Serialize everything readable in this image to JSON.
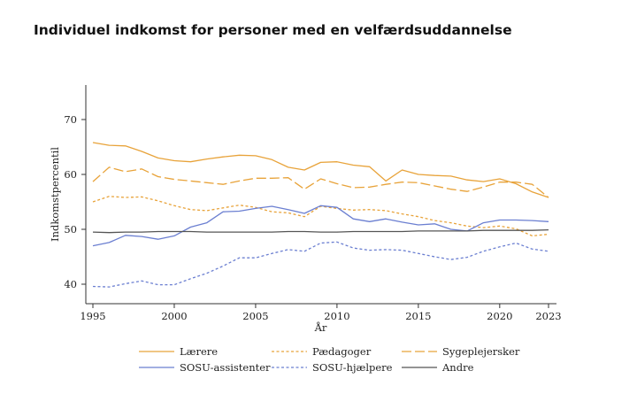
{
  "title": "Individuel indkomst for personer med en velfærdsuddannelse",
  "chart_data": {
    "type": "line",
    "xlabel": "År",
    "ylabel": "Indkomstpercentil",
    "xlim": [
      1995,
      2023
    ],
    "ylim": [
      38,
      74
    ],
    "x_ticks": [
      1995,
      2000,
      2005,
      2010,
      2015,
      2020,
      2023
    ],
    "y_ticks": [
      40,
      50,
      60,
      70
    ],
    "grid": false,
    "legend_position": "bottom",
    "x": [
      1995,
      1996,
      1997,
      1998,
      1999,
      2000,
      2001,
      2002,
      2003,
      2004,
      2005,
      2006,
      2007,
      2008,
      2009,
      2010,
      2011,
      2012,
      2013,
      2014,
      2015,
      2016,
      2017,
      2018,
      2019,
      2020,
      2021,
      2022,
      2023
    ],
    "series": [
      {
        "name": "Lærere",
        "color": "#e8a33a",
        "dash": "solid",
        "values": [
          65.8,
          65.3,
          65.2,
          64.2,
          63.0,
          62.5,
          62.3,
          62.8,
          63.2,
          63.5,
          63.4,
          62.7,
          61.3,
          60.8,
          62.2,
          62.3,
          61.7,
          61.4,
          58.8,
          60.8,
          60.0,
          59.8,
          59.7,
          59.0,
          58.7,
          59.2,
          58.3,
          56.8,
          55.8
        ]
      },
      {
        "name": "Pædagoger",
        "color": "#e8a33a",
        "dash": "dotted",
        "values": [
          55.0,
          56.0,
          55.8,
          55.9,
          55.2,
          54.3,
          53.6,
          53.4,
          53.9,
          54.4,
          54.0,
          53.2,
          53.0,
          52.3,
          54.2,
          53.8,
          53.5,
          53.6,
          53.4,
          52.8,
          52.3,
          51.6,
          51.2,
          50.6,
          50.3,
          50.6,
          50.1,
          48.8,
          49.1
        ]
      },
      {
        "name": "Sygeplejersker",
        "color": "#e8a33a",
        "dash": "dashed",
        "values": [
          58.7,
          61.3,
          60.5,
          61.0,
          59.6,
          59.1,
          58.8,
          58.5,
          58.2,
          58.8,
          59.3,
          59.3,
          59.4,
          57.3,
          59.2,
          58.3,
          57.6,
          57.7,
          58.2,
          58.6,
          58.5,
          57.9,
          57.3,
          56.9,
          57.7,
          58.6,
          58.6,
          58.2,
          55.8
        ]
      },
      {
        "name": "SOSU-assistenter",
        "color": "#6b7fd1",
        "dash": "solid",
        "values": [
          47.0,
          47.6,
          48.9,
          48.7,
          48.2,
          48.8,
          50.4,
          51.2,
          53.2,
          53.3,
          53.8,
          54.2,
          53.6,
          52.9,
          54.3,
          54.0,
          51.9,
          51.4,
          51.9,
          51.3,
          50.8,
          51.0,
          50.0,
          49.7,
          51.2,
          51.7,
          51.7,
          51.6,
          51.4
        ]
      },
      {
        "name": "SOSU-hjælpere",
        "color": "#6b7fd1",
        "dash": "dotted",
        "values": [
          39.6,
          39.5,
          40.1,
          40.6,
          39.9,
          39.9,
          41.0,
          42.0,
          43.3,
          44.8,
          44.8,
          45.6,
          46.3,
          46.0,
          47.5,
          47.7,
          46.6,
          46.2,
          46.3,
          46.2,
          45.6,
          45.0,
          44.5,
          44.9,
          46.0,
          46.8,
          47.5,
          46.4,
          46.0
        ]
      },
      {
        "name": "Andre",
        "color": "#555555",
        "dash": "solid",
        "values": [
          49.5,
          49.4,
          49.5,
          49.5,
          49.6,
          49.6,
          49.6,
          49.5,
          49.5,
          49.5,
          49.5,
          49.5,
          49.6,
          49.6,
          49.5,
          49.5,
          49.6,
          49.6,
          49.6,
          49.6,
          49.7,
          49.7,
          49.7,
          49.7,
          49.8,
          49.8,
          49.8,
          49.8,
          49.9
        ]
      }
    ]
  }
}
